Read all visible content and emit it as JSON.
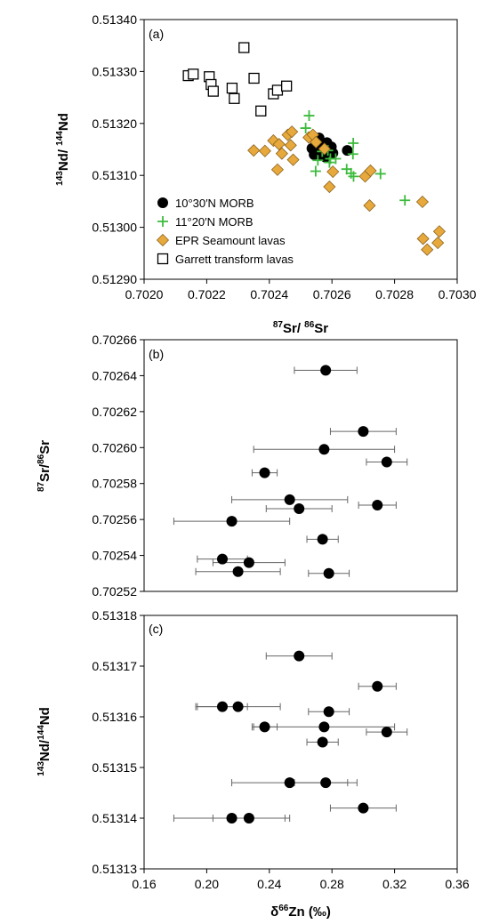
{
  "chart_data": [
    {
      "type": "scatter",
      "panel_label": "(a)",
      "xlabel": "87Sr/86Sr",
      "ylabel": "143Nd/144Nd",
      "xlim": [
        0.702,
        0.703
      ],
      "ylim": [
        0.5129,
        0.5134
      ],
      "xticks": [
        0.702,
        0.7022,
        0.7024,
        0.7026,
        0.7028,
        0.703
      ],
      "yticks": [
        0.5129,
        0.513,
        0.5131,
        0.5132,
        0.5133,
        0.5134
      ],
      "xtick_labels": [
        "0.7020",
        "0.7022",
        "0.7024",
        "0.7026",
        "0.7028",
        "0.7030"
      ],
      "ytick_labels": [
        "0.51290",
        "0.51300",
        "0.51310",
        "0.51320",
        "0.51330",
        "0.51340"
      ],
      "legend_position": "bottom-left",
      "series": [
        {
          "name": "10°30′N MORB",
          "marker": "circle",
          "color": "#000000",
          "x": [
            0.702536,
            0.702543,
            0.702554,
            0.702562,
            0.702571,
            0.702582,
            0.702559,
            0.702584,
            0.702603,
            0.702598,
            0.702566,
            0.702586,
            0.702579,
            0.702649,
            0.702562,
            0.702592
          ],
          "y": [
            0.513152,
            0.51314,
            0.513157,
            0.513145,
            0.51316,
            0.513148,
            0.513172,
            0.513163,
            0.513143,
            0.513155,
            0.513138,
            0.513158,
            0.513135,
            0.513148,
            0.51315,
            0.513142
          ]
        },
        {
          "name": "11°20′N MORB",
          "marker": "plus",
          "color": "#3dbb3d",
          "x": [
            0.702527,
            0.702516,
            0.702569,
            0.702548,
            0.702592,
            0.702661,
            0.702669,
            0.702668,
            0.702587,
            0.702612,
            0.702647,
            0.702667,
            0.702755,
            0.702833,
            0.702555,
            0.702595
          ],
          "y": [
            0.513215,
            0.513191,
            0.513146,
            0.513108,
            0.513125,
            0.513104,
            0.513098,
            0.513162,
            0.513148,
            0.513132,
            0.513112,
            0.513141,
            0.513103,
            0.513052,
            0.513129,
            0.513132
          ]
        },
        {
          "name": "EPR Seamount lavas",
          "marker": "diamond",
          "color": "#e8a93c",
          "x": [
            0.70235,
            0.702386,
            0.702413,
            0.702431,
            0.702459,
            0.702472,
            0.702426,
            0.70244,
            0.702468,
            0.702476,
            0.702526,
            0.702539,
            0.702603,
            0.702592,
            0.702706,
            0.702723,
            0.70272,
            0.702889,
            0.702891,
            0.702904,
            0.702938,
            0.702943,
            0.702576,
            0.702549
          ],
          "y": [
            0.513148,
            0.513147,
            0.513167,
            0.51316,
            0.513178,
            0.513184,
            0.513111,
            0.513142,
            0.513158,
            0.51313,
            0.513173,
            0.513178,
            0.513107,
            0.513078,
            0.513098,
            0.513109,
            0.513042,
            0.513049,
            0.512978,
            0.512957,
            0.51297,
            0.512992,
            0.513151,
            0.513164
          ]
        },
        {
          "name": "Garrett transform lavas",
          "marker": "square",
          "color": "#000000",
          "x": [
            0.702141,
            0.702157,
            0.702208,
            0.702214,
            0.702221,
            0.702281,
            0.702288,
            0.702319,
            0.702351,
            0.702373,
            0.702413,
            0.702426,
            0.702455
          ],
          "y": [
            0.513292,
            0.513295,
            0.51329,
            0.513275,
            0.513262,
            0.513268,
            0.513248,
            0.513346,
            0.513287,
            0.513224,
            0.513257,
            0.513264,
            0.513272
          ]
        }
      ]
    },
    {
      "type": "scatter",
      "panel_label": "(b)",
      "xlabel": "",
      "ylabel": "87Sr/86Sr",
      "xlim": [
        0.16,
        0.36
      ],
      "ylim": [
        0.70252,
        0.70266
      ],
      "yticks": [
        0.70252,
        0.70254,
        0.70256,
        0.70258,
        0.7026,
        0.70262,
        0.70264,
        0.70266
      ],
      "ytick_labels": [
        "0.70252",
        "0.70254",
        "0.70256",
        "0.70258",
        "0.70260",
        "0.70262",
        "0.70264",
        "0.70266"
      ],
      "series": [
        {
          "name": "10°30′N MORB",
          "marker": "circle",
          "color": "#000000",
          "x": [
            0.276,
            0.3,
            0.275,
            0.315,
            0.237,
            0.253,
            0.259,
            0.309,
            0.216,
            0.274,
            0.21,
            0.227,
            0.22,
            0.278
          ],
          "y": [
            0.702643,
            0.702609,
            0.702599,
            0.702592,
            0.702586,
            0.702571,
            0.702566,
            0.702568,
            0.702559,
            0.702549,
            0.702538,
            0.702536,
            0.702531,
            0.70253
          ],
          "err": [
            0.02,
            0.021,
            0.045,
            0.013,
            0.008,
            0.037,
            0.021,
            0.012,
            0.037,
            0.01,
            0.016,
            0.023,
            0.027,
            0.013
          ]
        }
      ]
    },
    {
      "type": "scatter",
      "panel_label": "(c)",
      "xlabel": "δ66Zn (‰)",
      "ylabel": "143Nd/144Nd",
      "xlim": [
        0.16,
        0.36
      ],
      "ylim": [
        0.51313,
        0.51318
      ],
      "xticks": [
        0.16,
        0.2,
        0.24,
        0.28,
        0.32,
        0.36
      ],
      "xtick_labels": [
        "0.16",
        "0.20",
        "0.24",
        "0.28",
        "0.32",
        "0.36"
      ],
      "yticks": [
        0.51313,
        0.51314,
        0.51315,
        0.51316,
        0.51317,
        0.51318
      ],
      "ytick_labels": [
        "0.51313",
        "0.51314",
        "0.51315",
        "0.51316",
        "0.51317",
        "0.51318"
      ],
      "series": [
        {
          "name": "10°30′N MORB",
          "marker": "circle",
          "color": "#000000",
          "x": [
            0.259,
            0.309,
            0.21,
            0.22,
            0.278,
            0.237,
            0.275,
            0.315,
            0.274,
            0.253,
            0.276,
            0.3,
            0.216,
            0.227
          ],
          "y": [
            0.513172,
            0.513166,
            0.513162,
            0.513162,
            0.513161,
            0.513158,
            0.513158,
            0.513157,
            0.513155,
            0.513147,
            0.513147,
            0.513142,
            0.51314,
            0.51314
          ],
          "err": [
            0.021,
            0.012,
            0.016,
            0.027,
            0.013,
            0.008,
            0.045,
            0.013,
            0.01,
            0.037,
            0.02,
            0.021,
            0.037,
            0.023
          ]
        }
      ]
    }
  ]
}
